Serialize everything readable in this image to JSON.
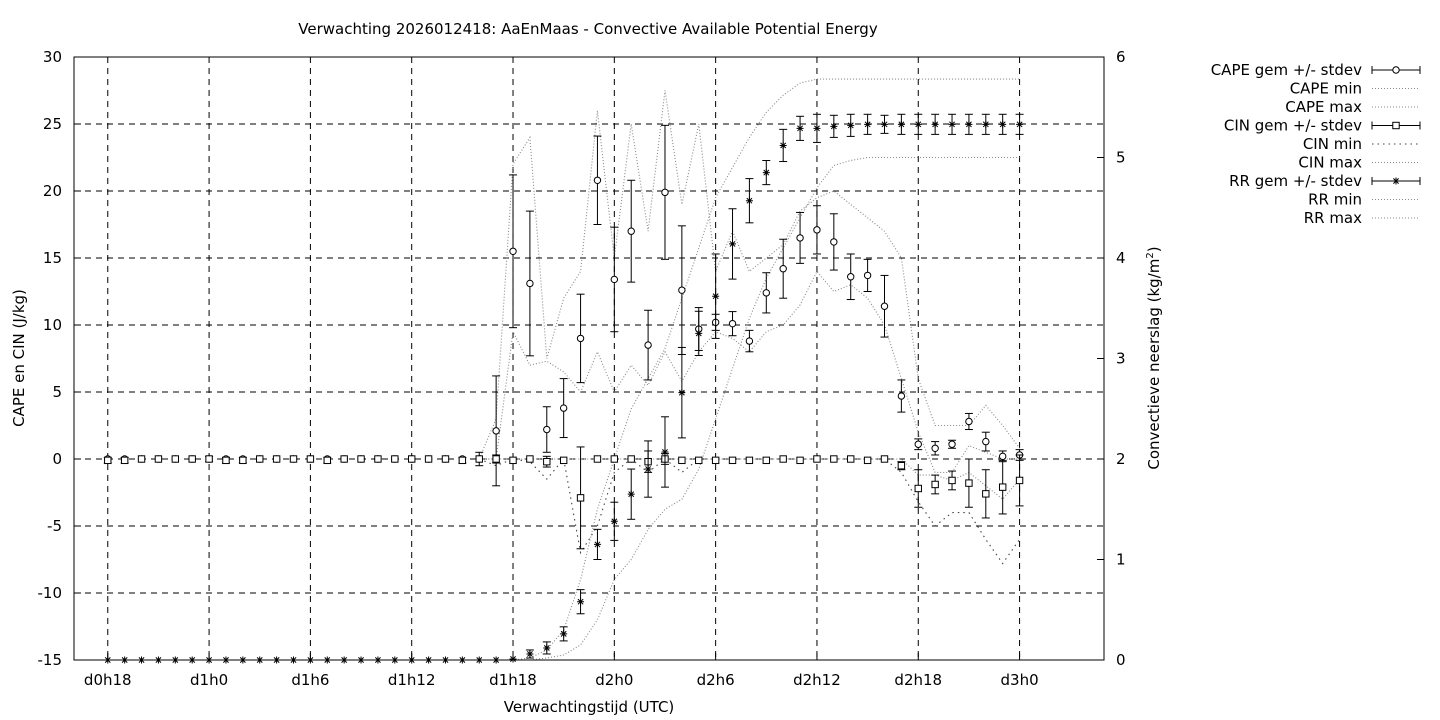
{
  "chart_data": {
    "type": "scatter",
    "title": "Verwachting 2026012418: AaEnMaas - Convective Available Potential Energy",
    "xlabel": "Verwachtingstijd (UTC)",
    "ylabel": "CAPE en CIN (J/kg)",
    "y2label_main": "Convectieve neerslag (kg/m",
    "y2label_sup": "2",
    "y2label_end": ")",
    "ylim": [
      -15,
      30
    ],
    "y2lim": [
      0,
      6
    ],
    "xlim_hours": [
      16,
      77
    ],
    "grid": true,
    "legend_position": "top-right (outside plot)",
    "x_ticks": [
      {
        "h": 18,
        "label": "d0h18"
      },
      {
        "h": 24,
        "label": "d1h0"
      },
      {
        "h": 30,
        "label": "d1h6"
      },
      {
        "h": 36,
        "label": "d1h12"
      },
      {
        "h": 42,
        "label": "d1h18"
      },
      {
        "h": 48,
        "label": "d2h0"
      },
      {
        "h": 54,
        "label": "d2h6"
      },
      {
        "h": 60,
        "label": "d2h12"
      },
      {
        "h": 66,
        "label": "d2h18"
      },
      {
        "h": 72,
        "label": "d3h0"
      }
    ],
    "y_ticks": [
      "-15",
      "-10",
      "-5",
      "0",
      "5",
      "10",
      "15",
      "20",
      "25",
      "30"
    ],
    "y2_ticks": [
      "0",
      "1",
      "2",
      "3",
      "4",
      "5",
      "6"
    ],
    "legend": [
      {
        "label": "CAPE gem +/- stdev",
        "style": "errorbar",
        "marker": "circle"
      },
      {
        "label": "CAPE min",
        "style": "dotted"
      },
      {
        "label": "CAPE max",
        "style": "dotted"
      },
      {
        "label": "CIN gem +/- stdev",
        "style": "errorbar",
        "marker": "square"
      },
      {
        "label": "CIN min",
        "style": "dotted-coarse"
      },
      {
        "label": "CIN max",
        "style": "dotted"
      },
      {
        "label": "RR gem +/- stdev",
        "style": "errorbar",
        "marker": "star"
      },
      {
        "label": "RR min",
        "style": "dotted"
      },
      {
        "label": "RR max",
        "style": "dotted"
      }
    ],
    "series": [
      {
        "name": "CAPE gem +/- stdev",
        "axis": "y1",
        "marker": "circle",
        "x": [
          18,
          19,
          20,
          21,
          22,
          23,
          24,
          25,
          26,
          27,
          28,
          29,
          30,
          31,
          32,
          33,
          34,
          35,
          36,
          37,
          38,
          39,
          40,
          41,
          42,
          43,
          44,
          45,
          46,
          47,
          48,
          49,
          50,
          51,
          52,
          53,
          54,
          55,
          56,
          57,
          58,
          59,
          60,
          61,
          62,
          63,
          64,
          65,
          66,
          67,
          68,
          69,
          70,
          71,
          72
        ],
        "mean": [
          0,
          0,
          0,
          0,
          0,
          0,
          0,
          0,
          0,
          0,
          0,
          0,
          0,
          0,
          0,
          0,
          0,
          0,
          0,
          0,
          0,
          0,
          0,
          2.1,
          15.5,
          13.1,
          2.2,
          3.8,
          9.0,
          20.8,
          13.4,
          17.0,
          8.5,
          19.9,
          12.6,
          9.7,
          10.2,
          10.1,
          8.8,
          12.4,
          14.2,
          16.5,
          17.1,
          16.2,
          13.6,
          13.7,
          11.4,
          4.7,
          1.1,
          0.8,
          1.1,
          2.8,
          1.3,
          0.2,
          0.3
        ],
        "stdev": [
          0,
          0,
          0,
          0,
          0,
          0,
          0,
          0,
          0,
          0,
          0,
          0,
          0,
          0,
          0,
          0,
          0,
          0,
          0,
          0,
          0,
          0,
          0,
          4.1,
          5.7,
          5.4,
          1.7,
          2.2,
          3.3,
          3.3,
          3.9,
          3.8,
          2.6,
          5.0,
          4.8,
          1.6,
          0.6,
          0.9,
          0.8,
          1.5,
          2.2,
          1.9,
          1.8,
          2.1,
          1.7,
          1.2,
          2.3,
          1.2,
          0.4,
          0.5,
          0.3,
          0.6,
          0.7,
          0.4,
          0.4
        ]
      },
      {
        "name": "CIN gem +/- stdev",
        "axis": "y1",
        "marker": "square",
        "x": [
          18,
          19,
          20,
          21,
          22,
          23,
          24,
          25,
          26,
          27,
          28,
          29,
          30,
          31,
          32,
          33,
          34,
          35,
          36,
          37,
          38,
          39,
          40,
          41,
          42,
          43,
          44,
          45,
          46,
          47,
          48,
          49,
          50,
          51,
          52,
          53,
          54,
          55,
          56,
          57,
          58,
          59,
          60,
          61,
          62,
          63,
          64,
          65,
          66,
          67,
          68,
          69,
          70,
          71,
          72
        ],
        "mean": [
          -0.1,
          -0.1,
          0,
          0,
          0,
          0,
          0,
          -0.1,
          -0.1,
          0,
          0,
          0,
          0,
          -0.1,
          0,
          0,
          0,
          0,
          0,
          0,
          0,
          -0.1,
          0,
          0,
          -0.1,
          0,
          -0.2,
          -0.1,
          -2.9,
          0,
          0,
          0,
          -0.2,
          0,
          -0.1,
          -0.1,
          -0.1,
          -0.1,
          -0.1,
          -0.1,
          0,
          -0.1,
          0,
          0,
          0,
          -0.1,
          0,
          -0.5,
          -2.2,
          -1.9,
          -1.6,
          -1.8,
          -2.6,
          -2.1,
          -1.6
        ],
        "stdev": [
          0.2,
          0.2,
          0.1,
          0.1,
          0.1,
          0.1,
          0.2,
          0.2,
          0.2,
          0.1,
          0.1,
          0.1,
          0.1,
          0.2,
          0.1,
          0.1,
          0.1,
          0.1,
          0.1,
          0.1,
          0.1,
          0.2,
          0.5,
          0.3,
          0.1,
          0.1,
          0.4,
          0.1,
          3.8,
          0.1,
          0.1,
          0.1,
          0.8,
          0.4,
          0.1,
          0.1,
          0.1,
          0.1,
          0.1,
          0.1,
          0.1,
          0.1,
          0.1,
          0.1,
          0.1,
          0.1,
          0.1,
          0.3,
          1.4,
          0.7,
          0.7,
          1.8,
          1.8,
          2.0,
          1.9
        ]
      },
      {
        "name": "RR gem +/- stdev",
        "axis": "y2",
        "marker": "star",
        "x": [
          18,
          19,
          20,
          21,
          22,
          23,
          24,
          25,
          26,
          27,
          28,
          29,
          30,
          31,
          32,
          33,
          34,
          35,
          36,
          37,
          38,
          39,
          40,
          41,
          42,
          43,
          44,
          45,
          46,
          47,
          48,
          49,
          50,
          51,
          52,
          53,
          54,
          55,
          56,
          57,
          58,
          59,
          60,
          61,
          62,
          63,
          64,
          65,
          66,
          67,
          68,
          69,
          70,
          71,
          72
        ],
        "mean": [
          0,
          0,
          0,
          0,
          0,
          0,
          0,
          0,
          0,
          0,
          0,
          0,
          0,
          0,
          0,
          0,
          0,
          0,
          0,
          0,
          0,
          0,
          0,
          0,
          0.01,
          0.06,
          0.12,
          0.26,
          0.58,
          1.15,
          1.38,
          1.65,
          1.9,
          2.07,
          2.66,
          3.25,
          3.62,
          4.14,
          4.57,
          4.85,
          5.12,
          5.29,
          5.29,
          5.31,
          5.32,
          5.33,
          5.33,
          5.33,
          5.33,
          5.33,
          5.33,
          5.33,
          5.33,
          5.33,
          5.33
        ],
        "stdev": [
          0,
          0,
          0,
          0,
          0,
          0,
          0,
          0,
          0,
          0,
          0,
          0,
          0,
          0,
          0,
          0,
          0,
          0,
          0,
          0,
          0,
          0,
          0,
          0,
          0.01,
          0.04,
          0.06,
          0.07,
          0.12,
          0.15,
          0.19,
          0.25,
          0.28,
          0.35,
          0.45,
          0.22,
          0.42,
          0.35,
          0.22,
          0.12,
          0.16,
          0.12,
          0.14,
          0.11,
          0.11,
          0.1,
          0.09,
          0.1,
          0.1,
          0.1,
          0.1,
          0.1,
          0.1,
          0.1,
          0.1
        ]
      },
      {
        "name": "CAPE min",
        "axis": "y1",
        "line": "dotted",
        "x": [
          40,
          41,
          42,
          43,
          44,
          45,
          46,
          47,
          48,
          49,
          50,
          51,
          52,
          53,
          54,
          55,
          56,
          57,
          58,
          59,
          60,
          61,
          62,
          63,
          64,
          65,
          66,
          67,
          68,
          69,
          70,
          71,
          72
        ],
        "y": [
          0,
          0,
          9.5,
          7,
          7.3,
          6.5,
          5,
          8,
          5,
          7,
          5.5,
          8,
          5.8,
          8,
          9.5,
          9,
          8,
          9.5,
          10,
          11.5,
          14,
          12.5,
          13,
          12,
          10,
          6,
          2,
          -1,
          -1,
          1,
          0.5,
          0,
          0
        ]
      },
      {
        "name": "CAPE max",
        "axis": "y1",
        "line": "dotted",
        "x": [
          40,
          41,
          42,
          43,
          44,
          45,
          46,
          47,
          48,
          49,
          50,
          51,
          52,
          53,
          54,
          55,
          56,
          57,
          58,
          59,
          60,
          61,
          62,
          63,
          64,
          65,
          66,
          67,
          68,
          69,
          70,
          71,
          72
        ],
        "y": [
          0,
          3,
          22,
          24,
          7.5,
          12,
          14,
          26,
          15,
          25,
          17,
          27.5,
          19,
          25,
          14,
          17,
          14,
          15,
          16,
          18.5,
          19.5,
          20,
          19,
          18,
          17,
          15,
          6,
          2.5,
          2.5,
          2.5,
          4,
          2.5,
          0.8
        ]
      },
      {
        "name": "CIN min",
        "axis": "y1",
        "line": "dotted-coarse",
        "x": [
          40,
          41,
          42,
          43,
          44,
          45,
          46,
          47,
          48,
          49,
          50,
          51,
          52,
          53,
          54,
          55,
          56,
          57,
          58,
          59,
          60,
          61,
          62,
          63,
          64,
          65,
          66,
          67,
          68,
          69,
          70,
          71,
          72
        ],
        "y": [
          0,
          -0.5,
          0,
          -0.2,
          -1.5,
          0,
          -7,
          -5,
          -1,
          0,
          -1,
          0,
          -1,
          0,
          0,
          0,
          0,
          0,
          0,
          0,
          0,
          0,
          0,
          0,
          0,
          -1,
          -3.2,
          -5,
          -4,
          -4,
          -6,
          -7.8,
          -6
        ]
      },
      {
        "name": "CIN max",
        "axis": "y1",
        "line": "dotted",
        "x": [
          40,
          41,
          42,
          43,
          44,
          45,
          46,
          47,
          48,
          49,
          50,
          51,
          52,
          53,
          54,
          55,
          56,
          57,
          58,
          59,
          60,
          61,
          62,
          63,
          64,
          65,
          66,
          67,
          68,
          69,
          70,
          71,
          72
        ],
        "y": [
          0,
          0,
          0,
          0,
          0,
          0,
          0,
          0,
          0,
          0,
          0,
          0,
          0,
          0,
          0,
          0,
          0,
          0,
          0,
          0,
          0,
          0,
          0,
          0,
          0,
          0,
          -1.2,
          -1.2,
          -1.6,
          -1,
          -2,
          -3,
          -1.5
        ]
      },
      {
        "name": "RR min",
        "axis": "y2",
        "line": "dotted",
        "x": [
          40,
          41,
          42,
          43,
          44,
          45,
          46,
          47,
          48,
          49,
          50,
          51,
          52,
          53,
          54,
          55,
          56,
          57,
          58,
          59,
          60,
          61,
          62,
          63,
          64,
          65,
          66,
          67,
          68,
          69,
          70,
          71,
          72
        ],
        "y": [
          0,
          0,
          0,
          0,
          0.02,
          0.05,
          0.15,
          0.4,
          0.8,
          1.0,
          1.3,
          1.5,
          1.6,
          1.9,
          2.4,
          2.9,
          3.4,
          3.8,
          4.1,
          4.4,
          4.7,
          4.92,
          4.97,
          5.0,
          5.0,
          5.0,
          5.0,
          5.0,
          5.0,
          5.0,
          5.0,
          5.0,
          5.0
        ]
      },
      {
        "name": "RR max",
        "axis": "y2",
        "line": "dotted",
        "x": [
          40,
          41,
          42,
          43,
          44,
          45,
          46,
          47,
          48,
          49,
          50,
          51,
          52,
          53,
          54,
          55,
          56,
          57,
          58,
          59,
          60,
          61,
          62,
          63,
          64,
          65,
          66,
          67,
          68,
          69,
          70,
          71,
          72
        ],
        "y": [
          0,
          0,
          0,
          0.02,
          0.1,
          0.3,
          0.8,
          1.5,
          2.0,
          2.5,
          2.8,
          3.1,
          3.6,
          4.1,
          4.6,
          4.9,
          5.2,
          5.45,
          5.62,
          5.74,
          5.78,
          5.78,
          5.78,
          5.78,
          5.78,
          5.78,
          5.78,
          5.78,
          5.78,
          5.78,
          5.78,
          5.78,
          5.78
        ]
      }
    ]
  }
}
